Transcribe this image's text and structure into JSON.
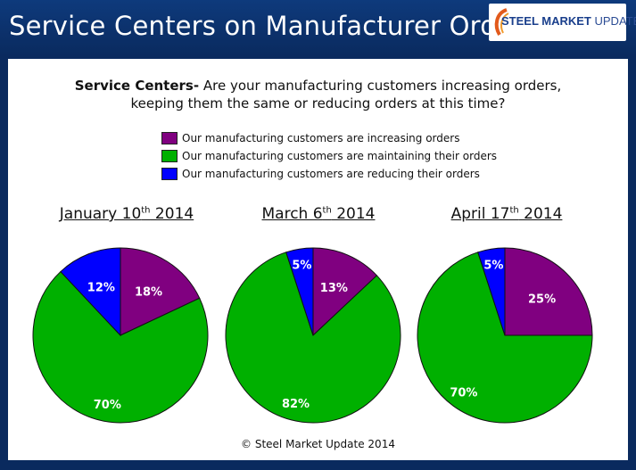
{
  "header": {
    "title": "Service Centers on Manufacturer Orders",
    "logo": {
      "strong": "STEEL MARKET",
      "thin": " UPDATE"
    }
  },
  "question": {
    "bold": "Service Centers-",
    "line1": " Are your manufacturing customers increasing orders,",
    "line2": "keeping them the same or reducing orders at this time?"
  },
  "legend": [
    {
      "label": "Our manufacturing customers are increasing orders",
      "color": "#800080"
    },
    {
      "label": "Our manufacturing customers are maintaining their orders",
      "color": "#00b000"
    },
    {
      "label": "Our manufacturing customers are reducing their orders",
      "color": "#0000ff"
    }
  ],
  "chart_data": [
    {
      "type": "pie",
      "title": {
        "pre": "January 10",
        "sup": "th",
        "post": " 2014"
      },
      "categories": [
        "Increasing",
        "Maintaining",
        "Reducing"
      ],
      "values": [
        18,
        70,
        12
      ],
      "labels": [
        "18%",
        "70%",
        "12%"
      ]
    },
    {
      "type": "pie",
      "title": {
        "pre": "March 6",
        "sup": "th",
        "post": " 2014"
      },
      "categories": [
        "Increasing",
        "Maintaining",
        "Reducing"
      ],
      "values": [
        13,
        82,
        5
      ],
      "labels": [
        "13%",
        "82%",
        "5%"
      ]
    },
    {
      "type": "pie",
      "title": {
        "pre": "April 17",
        "sup": "th",
        "post": " 2014"
      },
      "categories": [
        "Increasing",
        "Maintaining",
        "Reducing"
      ],
      "values": [
        25,
        70,
        5
      ],
      "labels": [
        "25%",
        "70%",
        "5%"
      ]
    }
  ],
  "footer": "© Steel Market Update 2014"
}
